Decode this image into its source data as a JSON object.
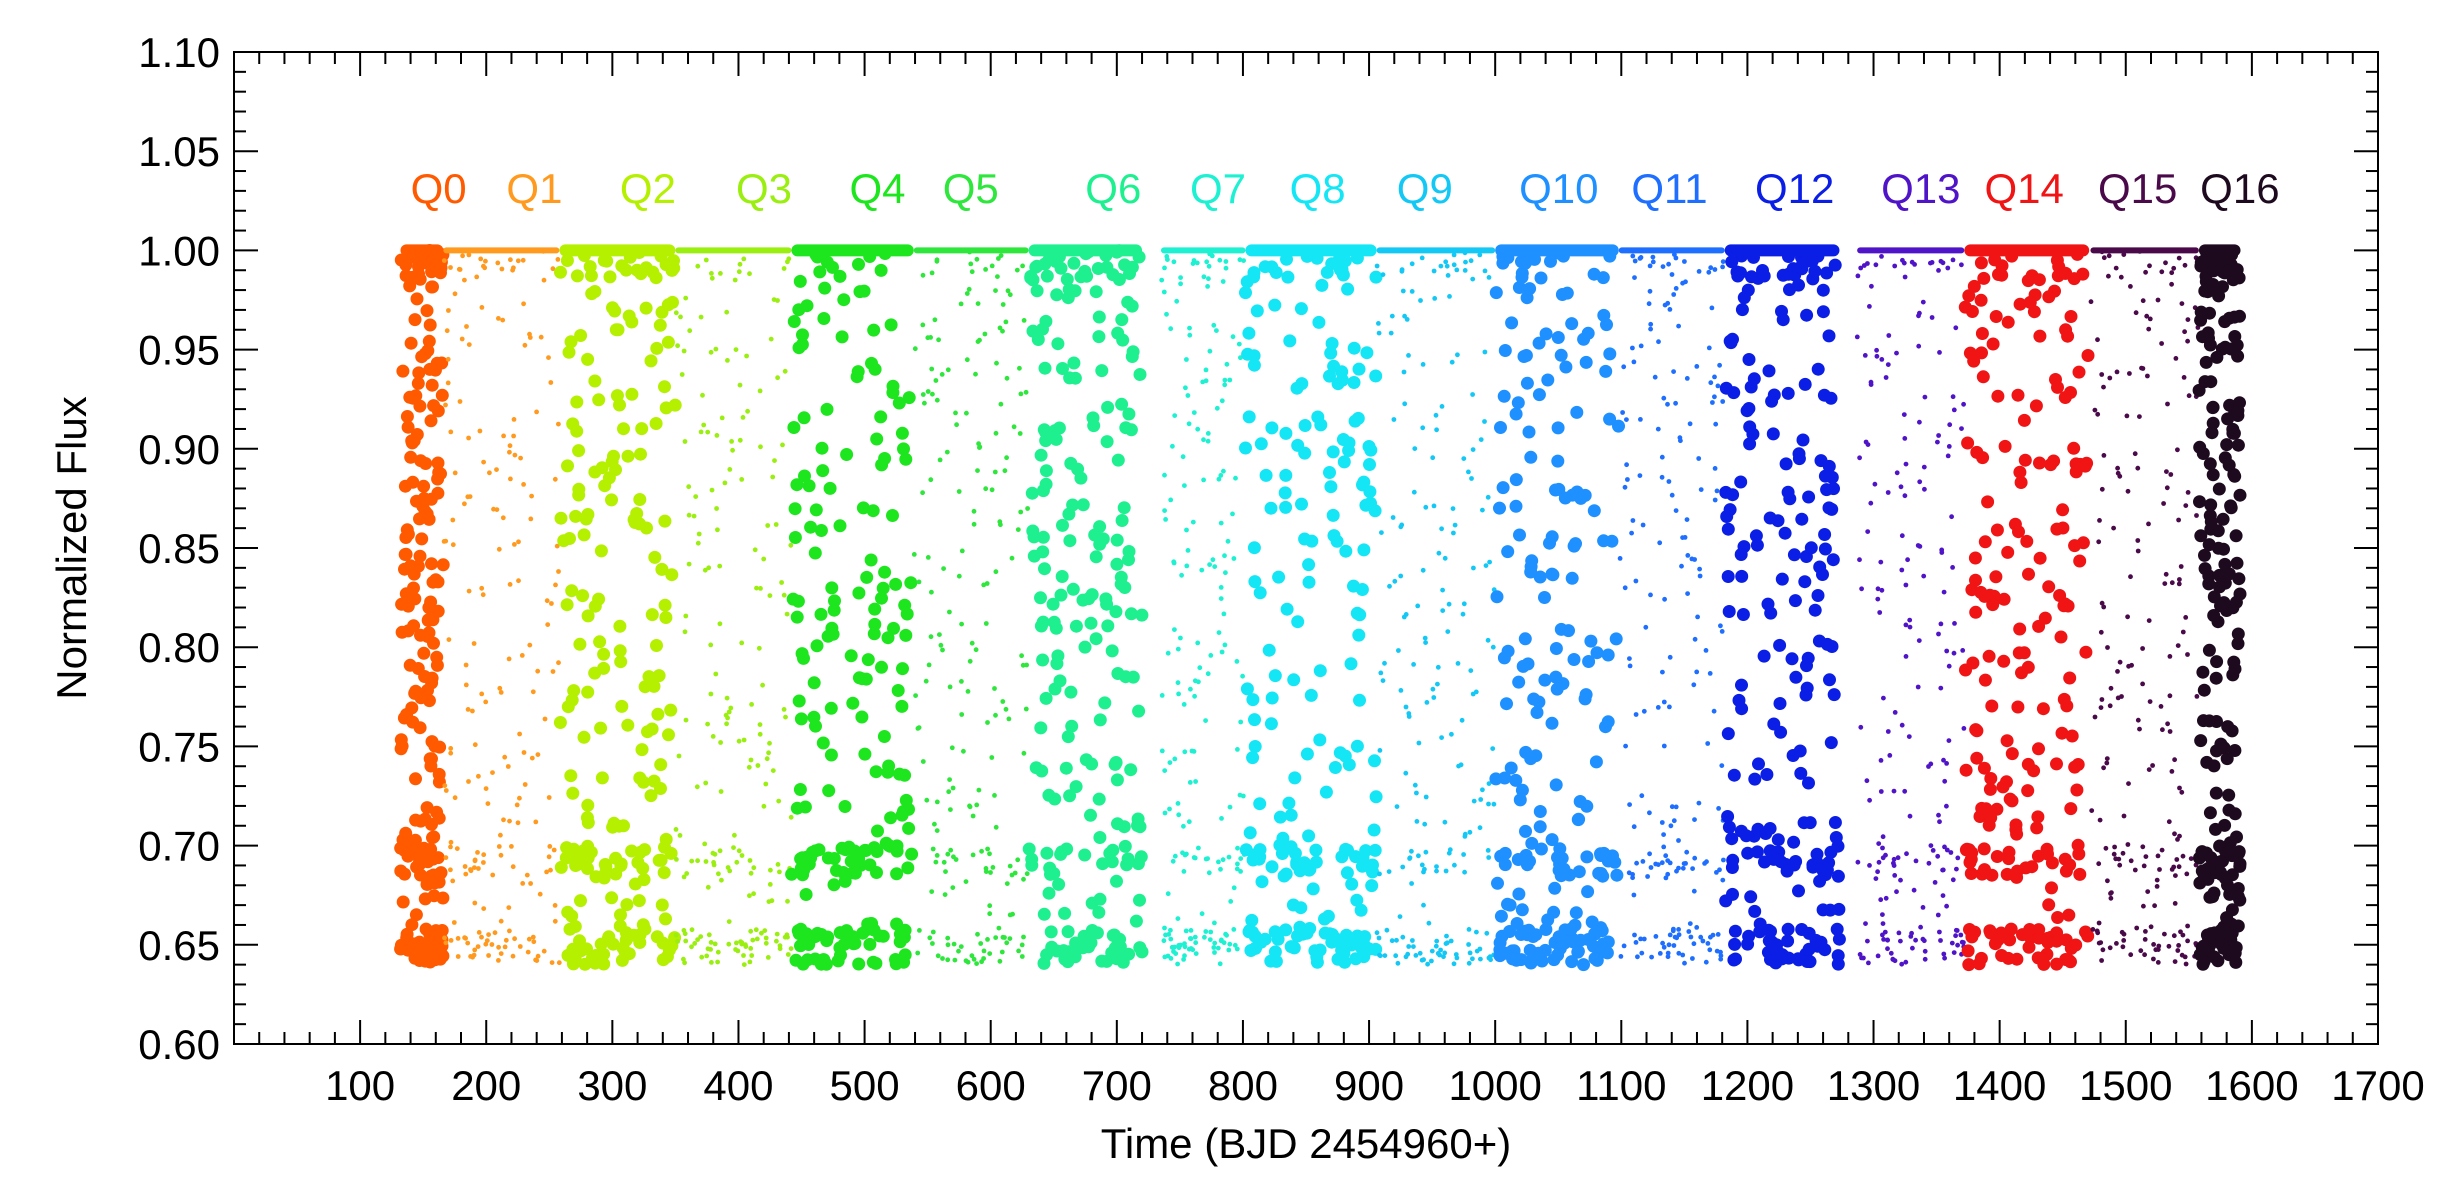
{
  "chart_data": {
    "type": "scatter",
    "xlabel": "Time (BJD 2454960+)",
    "ylabel": "Normalized Flux",
    "xlim": [
      0,
      1700
    ],
    "ylim": [
      0.6,
      1.1
    ],
    "x_ticks": [
      "100",
      "200",
      "300",
      "400",
      "500",
      "600",
      "700",
      "800",
      "900",
      "1000",
      "1100",
      "1200",
      "1300",
      "1400",
      "1500",
      "1600",
      "1700"
    ],
    "y_ticks": [
      "0.60",
      "0.65",
      "0.70",
      "0.75",
      "0.80",
      "0.85",
      "0.90",
      "0.95",
      "1.00",
      "1.05",
      "1.10"
    ],
    "grid": false,
    "legend": "none",
    "transit_depth_min": 0.64,
    "baseline_flux": 1.0,
    "series": [
      {
        "name": "Q0",
        "label_x": 140,
        "color": "#ff5a00",
        "x_range": [
          132,
          166
        ],
        "marker_size": "large"
      },
      {
        "name": "Q1",
        "label_x": 216,
        "color": "#ff9a1e",
        "x_range": [
          166,
          258
        ],
        "marker_size": "small"
      },
      {
        "name": "Q2",
        "label_x": 306,
        "color": "#b4f000",
        "x_range": [
          258,
          350
        ],
        "marker_size": "large"
      },
      {
        "name": "Q3",
        "label_x": 398,
        "color": "#9aee10",
        "x_range": [
          350,
          442
        ],
        "marker_size": "small"
      },
      {
        "name": "Q4",
        "label_x": 488,
        "color": "#1ee61e",
        "x_range": [
          442,
          539
        ],
        "marker_size": "large"
      },
      {
        "name": "Q5",
        "label_x": 562,
        "color": "#2ee63c",
        "x_range": [
          539,
          630
        ],
        "marker_size": "small"
      },
      {
        "name": "Q6",
        "label_x": 675,
        "color": "#1ef090",
        "x_range": [
          630,
          720
        ],
        "marker_size": "large"
      },
      {
        "name": "Q7",
        "label_x": 758,
        "color": "#1ef0d2",
        "x_range": [
          735,
          802
        ],
        "marker_size": "small"
      },
      {
        "name": "Q8",
        "label_x": 837,
        "color": "#14e6f5",
        "x_range": [
          802,
          906
        ],
        "marker_size": "large"
      },
      {
        "name": "Q9",
        "label_x": 922,
        "color": "#14c8f5",
        "x_range": [
          906,
          1000
        ],
        "marker_size": "small"
      },
      {
        "name": "Q10",
        "label_x": 1019,
        "color": "#1e90ff",
        "x_range": [
          1000,
          1098
        ],
        "marker_size": "large"
      },
      {
        "name": "Q11",
        "label_x": 1108,
        "color": "#1e6eff",
        "x_range": [
          1098,
          1182
        ],
        "marker_size": "small"
      },
      {
        "name": "Q12",
        "label_x": 1206,
        "color": "#0a1ee6",
        "x_range": [
          1182,
          1273
        ],
        "marker_size": "large"
      },
      {
        "name": "Q13",
        "label_x": 1306,
        "color": "#5014c8",
        "x_range": [
          1287,
          1372
        ],
        "marker_size": "small"
      },
      {
        "name": "Q14",
        "label_x": 1388,
        "color": "#f01414",
        "x_range": [
          1372,
          1471
        ],
        "marker_size": "large"
      },
      {
        "name": "Q15",
        "label_x": 1478,
        "color": "#4a0a4a",
        "x_range": [
          1472,
          1558
        ],
        "marker_size": "small"
      },
      {
        "name": "Q16",
        "label_x": 1559,
        "color": "#1e0a1e",
        "x_range": [
          1558,
          1591
        ],
        "marker_size": "large"
      }
    ]
  }
}
